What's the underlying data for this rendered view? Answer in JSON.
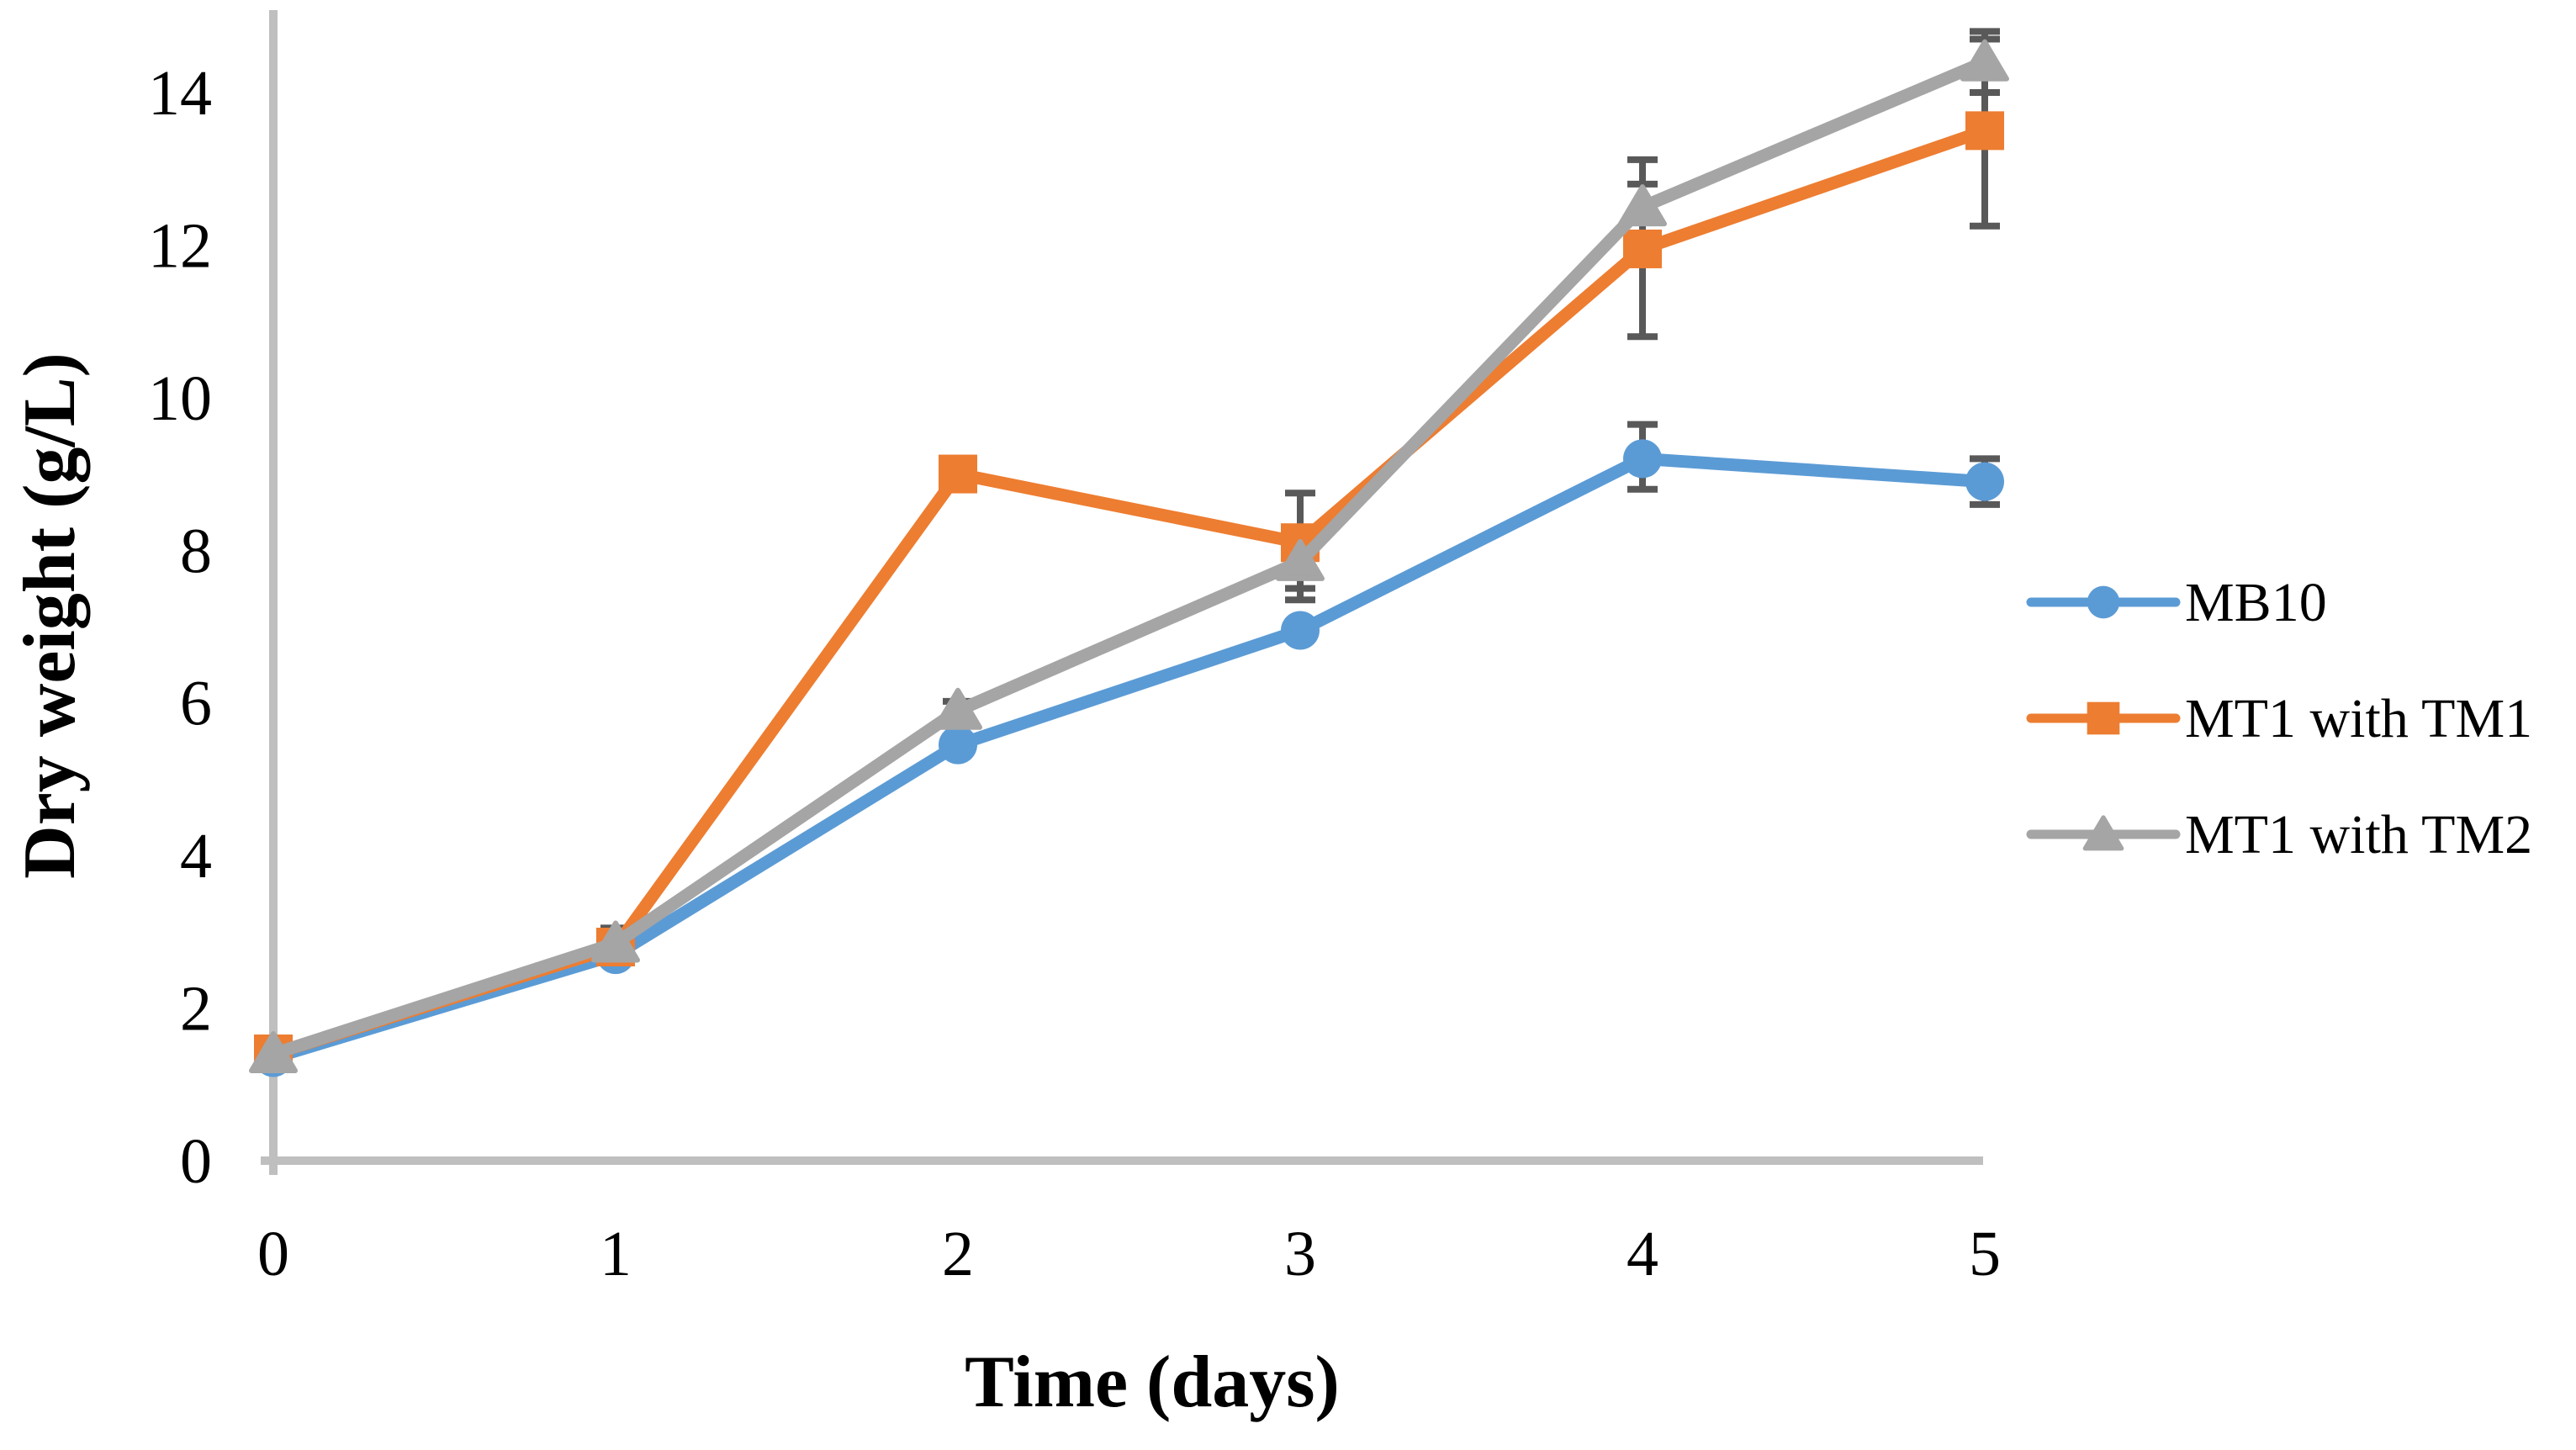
{
  "chart_data": {
    "type": "line",
    "title": "",
    "xlabel": "Time (days)",
    "ylabel": "Dry weight (g/L)",
    "x": [
      0,
      1,
      2,
      3,
      4,
      5
    ],
    "xticks": [
      "0",
      "1",
      "2",
      "3",
      "4",
      "5"
    ],
    "yticks": [
      "0",
      "2",
      "4",
      "6",
      "8",
      "10",
      "12",
      "14"
    ],
    "ytick_values": [
      0,
      2,
      4,
      6,
      8,
      10,
      12,
      14
    ],
    "xlim": [
      0,
      5
    ],
    "ylim": [
      0,
      14
    ],
    "grid": false,
    "legend_position": "right-middle",
    "axis_color": "#BFBFBF",
    "error_bar_color": "#595959",
    "text_color": "#000000",
    "series": [
      {
        "name": "MB10",
        "color": "#5B9BD5",
        "marker": "circle",
        "values": [
          1.35,
          2.7,
          5.45,
          6.95,
          9.2,
          8.9
        ],
        "err_plus": [
          0,
          0,
          0,
          0,
          0.45,
          0.3
        ],
        "err_minus": [
          0,
          0,
          0,
          0,
          0.4,
          0.3
        ]
      },
      {
        "name": "MT1 with TM1",
        "color": "#ED7D31",
        "marker": "square",
        "values": [
          1.4,
          2.8,
          9.0,
          8.1,
          11.95,
          13.5
        ],
        "err_plus": [
          0.12,
          0,
          0,
          0.65,
          0.85,
          1.2
        ],
        "err_minus": [
          0.12,
          0,
          0,
          0.6,
          1.15,
          1.25
        ]
      },
      {
        "name": "MT1 with TM2",
        "color": "#A5A5A5",
        "marker": "triangle",
        "values": [
          1.4,
          2.85,
          5.9,
          7.85,
          12.5,
          14.4
        ],
        "err_plus": [
          0.15,
          0.2,
          0.12,
          0.45,
          0.62,
          0.4
        ],
        "err_minus": [
          0.15,
          0.2,
          0.12,
          0.5,
          0.6,
          0.4
        ]
      }
    ]
  }
}
